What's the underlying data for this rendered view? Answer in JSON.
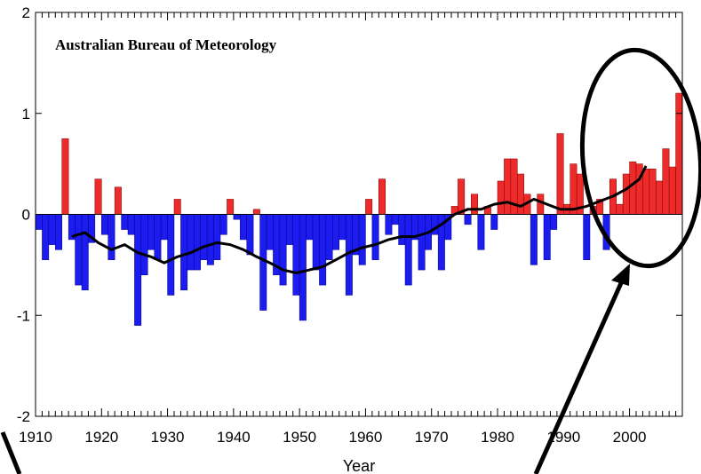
{
  "chart_data": {
    "type": "bar",
    "title": "Australian Bureau of Meteorology",
    "xlabel": "Year",
    "ylabel": "",
    "xlim": [
      1910,
      2008
    ],
    "ylim": [
      -2,
      2
    ],
    "xticks": [
      1910,
      1920,
      1930,
      1940,
      1950,
      1960,
      1970,
      1980,
      1990,
      2000
    ],
    "yticks": [
      -2,
      -1,
      0,
      1,
      2
    ],
    "xtick_labels": [
      "1910",
      "1920",
      "1930",
      "1940",
      "1950",
      "1960",
      "1970",
      "1980",
      "1990",
      "2000"
    ],
    "ytick_labels": [
      "-2",
      "-1",
      "0",
      "1",
      "2"
    ],
    "grid": false,
    "colors": {
      "positive": "#ee2b2b",
      "negative": "#1c1cf0",
      "trend": "#000000",
      "annotation": "#000000"
    },
    "series": [
      {
        "type": "bar",
        "x": [
          1910,
          1911,
          1912,
          1913,
          1914,
          1915,
          1916,
          1917,
          1918,
          1919,
          1920,
          1921,
          1922,
          1923,
          1924,
          1925,
          1926,
          1927,
          1928,
          1929,
          1930,
          1931,
          1932,
          1933,
          1934,
          1935,
          1936,
          1937,
          1938,
          1939,
          1940,
          1941,
          1942,
          1943,
          1944,
          1945,
          1946,
          1947,
          1948,
          1949,
          1950,
          1951,
          1952,
          1953,
          1954,
          1955,
          1956,
          1957,
          1958,
          1959,
          1960,
          1961,
          1962,
          1963,
          1964,
          1965,
          1966,
          1967,
          1968,
          1969,
          1970,
          1971,
          1972,
          1973,
          1974,
          1975,
          1976,
          1977,
          1978,
          1979,
          1980,
          1981,
          1982,
          1983,
          1984,
          1985,
          1986,
          1987,
          1988,
          1989,
          1990,
          1991,
          1992,
          1993,
          1994,
          1995,
          1996,
          1997,
          1998,
          1999,
          2000,
          2001,
          2002,
          2003,
          2004,
          2005,
          2006,
          2007
        ],
        "values": [
          -0.15,
          -0.45,
          -0.3,
          -0.35,
          0.75,
          -0.25,
          -0.7,
          -0.75,
          -0.28,
          0.35,
          -0.2,
          -0.45,
          0.27,
          -0.15,
          -0.2,
          -1.1,
          -0.6,
          -0.35,
          -0.45,
          -0.25,
          -0.8,
          0.15,
          -0.75,
          -0.55,
          -0.55,
          -0.45,
          -0.5,
          -0.45,
          -0.2,
          0.15,
          -0.05,
          -0.25,
          -0.4,
          0.05,
          -0.95,
          -0.35,
          -0.6,
          -0.7,
          -0.3,
          -0.8,
          -1.05,
          -0.25,
          -0.55,
          -0.7,
          -0.45,
          -0.35,
          -0.25,
          -0.8,
          -0.4,
          -0.5,
          0.15,
          -0.45,
          0.35,
          -0.2,
          -0.1,
          -0.3,
          -0.7,
          -0.25,
          -0.55,
          -0.35,
          -0.2,
          -0.55,
          -0.25,
          0.08,
          0.35,
          -0.1,
          0.2,
          -0.35,
          0.08,
          -0.15,
          0.33,
          0.55,
          0.55,
          0.4,
          0.2,
          -0.5,
          0.2,
          -0.45,
          -0.15,
          0.8,
          0.1,
          0.5,
          0.4,
          -0.45,
          0.08,
          0.15,
          -0.35,
          0.35,
          0.1,
          0.4,
          0.52,
          0.5,
          0.45,
          0.45,
          0.33,
          0.65,
          0.47,
          1.2
        ]
      },
      {
        "type": "line",
        "x": [
          1915,
          1917,
          1919,
          1921,
          1923,
          1925,
          1927,
          1929,
          1931,
          1933,
          1935,
          1937,
          1939,
          1941,
          1943,
          1945,
          1947,
          1949,
          1951,
          1953,
          1955,
          1957,
          1959,
          1961,
          1963,
          1965,
          1967,
          1969,
          1971,
          1973,
          1975,
          1977,
          1979,
          1981,
          1983,
          1985,
          1987,
          1989,
          1991,
          1993,
          1995,
          1997,
          1999,
          2001,
          2002
        ],
        "values": [
          -0.22,
          -0.18,
          -0.28,
          -0.35,
          -0.3,
          -0.38,
          -0.42,
          -0.48,
          -0.42,
          -0.38,
          -0.32,
          -0.28,
          -0.3,
          -0.35,
          -0.42,
          -0.48,
          -0.55,
          -0.58,
          -0.55,
          -0.52,
          -0.45,
          -0.38,
          -0.33,
          -0.3,
          -0.25,
          -0.22,
          -0.22,
          -0.18,
          -0.1,
          0.0,
          0.05,
          0.05,
          0.1,
          0.12,
          0.08,
          0.15,
          0.1,
          0.05,
          0.05,
          0.08,
          0.13,
          0.18,
          0.25,
          0.35,
          0.48
        ]
      }
    ]
  }
}
